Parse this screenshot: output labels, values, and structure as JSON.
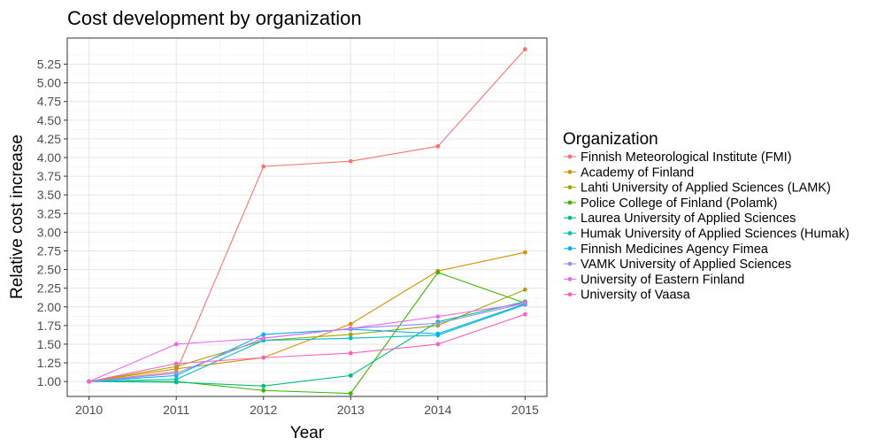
{
  "chart_data": {
    "type": "line",
    "title": "Cost development by organization",
    "xlabel": "Year",
    "ylabel": "Relative cost increase",
    "x": [
      2010,
      2011,
      2012,
      2013,
      2014,
      2015
    ],
    "x_ticks": [
      "2010",
      "2011",
      "2012",
      "2013",
      "2014",
      "2015"
    ],
    "y_ticks": [
      "1.00",
      "1.25",
      "1.50",
      "1.75",
      "2.00",
      "2.25",
      "2.50",
      "2.75",
      "3.00",
      "3.25",
      "3.50",
      "3.75",
      "4.00",
      "4.25",
      "4.50",
      "4.75",
      "5.00",
      "5.25"
    ],
    "xlim": [
      2009.75,
      2015.25
    ],
    "ylim": [
      0.8,
      5.6
    ],
    "grid": true,
    "legend_title": "Organization",
    "legend_position": "right",
    "series": [
      {
        "name": "Finnish Meteorological Institute (FMI)",
        "color": "#F8766D",
        "values": [
          1.0,
          1.13,
          3.88,
          3.95,
          4.15,
          5.45
        ]
      },
      {
        "name": "Academy of Finland",
        "color": "#D89000",
        "values": [
          1.0,
          1.17,
          1.32,
          1.77,
          2.48,
          2.73
        ]
      },
      {
        "name": "Lahti University of Applied Sciences (LAMK)",
        "color": "#A3A500",
        "values": [
          1.0,
          1.2,
          1.55,
          1.63,
          1.75,
          2.23
        ]
      },
      {
        "name": "Police College of Finland (Polamk)",
        "color": "#39B600",
        "values": [
          1.0,
          1.0,
          0.88,
          0.84,
          2.46,
          2.05
        ]
      },
      {
        "name": "Laurea University of Applied Sciences",
        "color": "#00BF7D",
        "values": [
          1.0,
          0.99,
          0.94,
          1.08,
          1.8,
          2.07
        ]
      },
      {
        "name": "Humak University of Applied Sciences (Humak)",
        "color": "#00BFC4",
        "values": [
          1.0,
          1.03,
          1.55,
          1.58,
          1.62,
          2.03
        ]
      },
      {
        "name": "Finnish Medicines Agency Fimea",
        "color": "#00B0F6",
        "values": [
          1.0,
          1.08,
          1.63,
          1.7,
          1.64,
          2.04
        ]
      },
      {
        "name": "VAMK University of Applied Sciences",
        "color": "#9590FF",
        "values": [
          1.0,
          1.11,
          1.58,
          1.71,
          1.78,
          2.05
        ]
      },
      {
        "name": "University of Eastern Finland",
        "color": "#E76BF3",
        "values": [
          1.0,
          1.5,
          1.58,
          1.71,
          1.87,
          2.05
        ]
      },
      {
        "name": "University of Vaasa",
        "color": "#FF62BC",
        "values": [
          1.0,
          1.24,
          1.32,
          1.38,
          1.5,
          1.9
        ]
      }
    ]
  }
}
